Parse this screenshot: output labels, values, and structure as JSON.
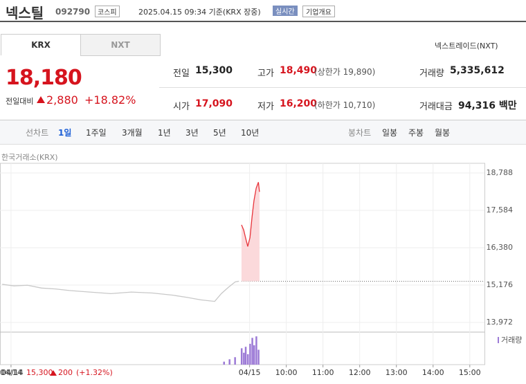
{
  "header": {
    "name": "넥스틸",
    "code": "092790",
    "market": "코스피",
    "time": "2025.04.15 09:34 기준(KRX 장중)",
    "realtime": "실시간",
    "company": "기업개요"
  },
  "tabs": [
    "KRX",
    "NXT"
  ],
  "nxt_link": "넥스트레이드(NXT)",
  "quote": {
    "price": "18,180",
    "change_label": "전일대비",
    "change": "2,880",
    "rate": "+18.82%",
    "rows": [
      [
        [
          "전일",
          "15,300",
          ""
        ],
        [
          "고가",
          "18,490",
          "(상한가 19,890)"
        ],
        [
          "거래량",
          "5,335,612",
          ""
        ]
      ],
      [
        [
          "시가",
          "17,090",
          ""
        ],
        [
          "저가",
          "16,200",
          "(하한가 10,710)"
        ],
        [
          "거래대금",
          "94,316 백만",
          ""
        ]
      ]
    ]
  },
  "periods": {
    "line_label": "선차트",
    "line": [
      "1일",
      "1주일",
      "3개월",
      "1년",
      "3년",
      "5년",
      "10년"
    ],
    "candle_label": "봉차트",
    "candle": [
      "일봉",
      "주봉",
      "월봉"
    ]
  },
  "chart_data": {
    "type": "line",
    "subtitle": "한국거래소(KRX)",
    "volume_label": "거래량",
    "xlim": [
      2.2,
      15.4
    ],
    "ylim": [
      13727,
      19100
    ],
    "yticks": [
      {
        "value": 18788,
        "label": "18,788"
      },
      {
        "value": 17584,
        "label": "17,584"
      },
      {
        "value": 16380,
        "label": "16,380"
      },
      {
        "value": 15176,
        "label": "15,176"
      },
      {
        "value": 13972,
        "label": "13,972"
      }
    ],
    "xticks": [
      {
        "value": 2.5,
        "label": "04/14"
      },
      {
        "value": 9,
        "label": "04/15"
      },
      {
        "value": 10,
        "label": "10:00"
      },
      {
        "value": 11,
        "label": "11:00"
      },
      {
        "value": 12,
        "label": "12:00"
      },
      {
        "value": 13,
        "label": "13:00"
      },
      {
        "value": 14,
        "label": "14:00"
      },
      {
        "value": 15,
        "label": "15:00"
      }
    ],
    "base_value": 15300,
    "series": [
      {
        "color": "#c8c8c8",
        "x": [
          2.26,
          2.58,
          2.95,
          3.33,
          3.71,
          4.09,
          4.65,
          5.22,
          5.78,
          6.35,
          6.91,
          7.29,
          7.67,
          8.05,
          8.23,
          8.42,
          8.61,
          8.71
        ],
        "values": [
          15200,
          15150,
          15170,
          15080,
          15050,
          15000,
          14950,
          14900,
          14950,
          14920,
          14850,
          14780,
          14700,
          14650,
          14900,
          15100,
          15280,
          15300
        ]
      },
      {
        "color": "#e8333a",
        "x": [
          8.78,
          8.84,
          8.89,
          8.95,
          9.01,
          9.07,
          9.12,
          9.18,
          9.24,
          9.27
        ],
        "values": [
          17115,
          16950,
          16700,
          16420,
          16700,
          17400,
          17900,
          18300,
          18490,
          18180
        ]
      }
    ],
    "volume": {
      "color": "#9c7ad6",
      "vlim": [
        0,
        100
      ],
      "x": [
        8.3,
        8.45,
        8.6,
        8.78,
        8.84,
        8.89,
        8.95,
        9.01,
        9.07,
        9.12,
        9.18,
        9.24
      ],
      "values": [
        10,
        18,
        25,
        55,
        40,
        60,
        35,
        70,
        90,
        65,
        95,
        50
      ]
    },
    "footer": {
      "date": "04/14",
      "price": "15,300",
      "change": "200",
      "rate": "(+1.32%)"
    }
  }
}
